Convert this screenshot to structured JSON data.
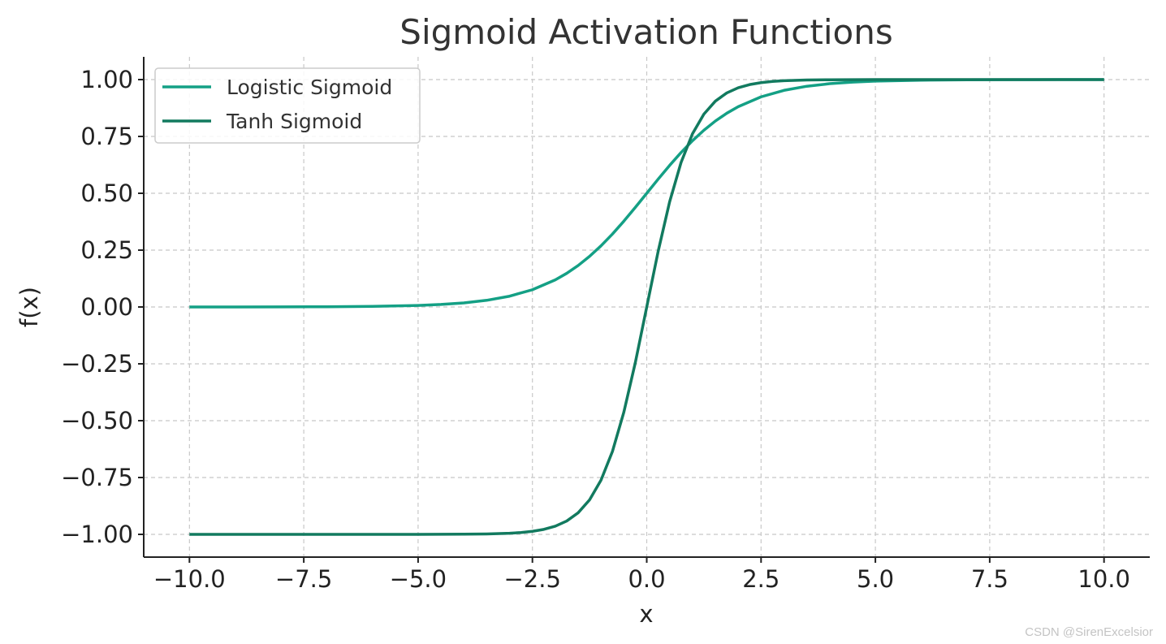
{
  "chart_data": {
    "type": "line",
    "title": "Sigmoid Activation Functions",
    "xlabel": "x",
    "ylabel": "f(x)",
    "xlim": [
      -11,
      11
    ],
    "ylim": [
      -1.1,
      1.1
    ],
    "x_ticks": [
      -10.0,
      -7.5,
      -5.0,
      -2.5,
      0.0,
      2.5,
      5.0,
      7.5,
      10.0
    ],
    "x_tick_labels": [
      "−10.0",
      "−7.5",
      "−5.0",
      "−2.5",
      "0.0",
      "2.5",
      "5.0",
      "7.5",
      "10.0"
    ],
    "y_ticks": [
      1.0,
      0.75,
      0.5,
      0.25,
      0.0,
      -0.25,
      -0.5,
      -0.75,
      -1.0
    ],
    "y_tick_labels": [
      "1.00",
      "0.75",
      "0.50",
      "0.25",
      "0.00",
      "−0.25",
      "−0.50",
      "−0.75",
      "−1.00"
    ],
    "grid": true,
    "legend_position": "top-left",
    "series": [
      {
        "name": "Logistic Sigmoid",
        "color": "#14a085",
        "x": [
          -10,
          -9,
          -8,
          -7,
          -6,
          -5,
          -4.5,
          -4,
          -3.5,
          -3,
          -2.5,
          -2,
          -1.75,
          -1.5,
          -1.25,
          -1,
          -0.75,
          -0.5,
          -0.25,
          0,
          0.25,
          0.5,
          0.75,
          1,
          1.25,
          1.5,
          1.75,
          2,
          2.5,
          3,
          3.5,
          4,
          4.5,
          5,
          6,
          7,
          8,
          9,
          10
        ],
        "y": [
          4.54e-05,
          0.000123,
          0.000335,
          0.000911,
          0.00247,
          0.00669,
          0.011,
          0.018,
          0.0293,
          0.0474,
          0.0759,
          0.1192,
          0.148,
          0.1824,
          0.2227,
          0.2689,
          0.3208,
          0.3775,
          0.4378,
          0.5,
          0.5622,
          0.6225,
          0.6792,
          0.7311,
          0.7773,
          0.8176,
          0.852,
          0.8808,
          0.9241,
          0.9526,
          0.9707,
          0.982,
          0.989,
          0.9933,
          0.9975,
          0.9991,
          0.99966,
          0.99988,
          0.99995
        ]
      },
      {
        "name": "Tanh Sigmoid",
        "color": "#127a5f",
        "x": [
          -10,
          -8,
          -6,
          -5,
          -4,
          -3.5,
          -3,
          -2.75,
          -2.5,
          -2.25,
          -2,
          -1.75,
          -1.5,
          -1.25,
          -1,
          -0.75,
          -0.5,
          -0.25,
          0,
          0.25,
          0.5,
          0.75,
          1,
          1.25,
          1.5,
          1.75,
          2,
          2.25,
          2.5,
          2.75,
          3,
          3.5,
          4,
          5,
          6,
          8,
          10
        ],
        "y": [
          -1.0,
          -1.0,
          -0.99999,
          -0.99991,
          -0.99933,
          -0.99818,
          -0.99505,
          -0.99186,
          -0.98661,
          -0.97803,
          -0.96403,
          -0.94138,
          -0.90515,
          -0.84828,
          -0.76159,
          -0.63515,
          -0.46212,
          -0.24492,
          0,
          0.24492,
          0.46212,
          0.63515,
          0.76159,
          0.84828,
          0.90515,
          0.94138,
          0.96403,
          0.97803,
          0.98661,
          0.99186,
          0.99505,
          0.99818,
          0.99933,
          0.99991,
          0.99999,
          1.0,
          1.0
        ]
      }
    ]
  },
  "watermark": "CSDN @SirenExcelsior"
}
